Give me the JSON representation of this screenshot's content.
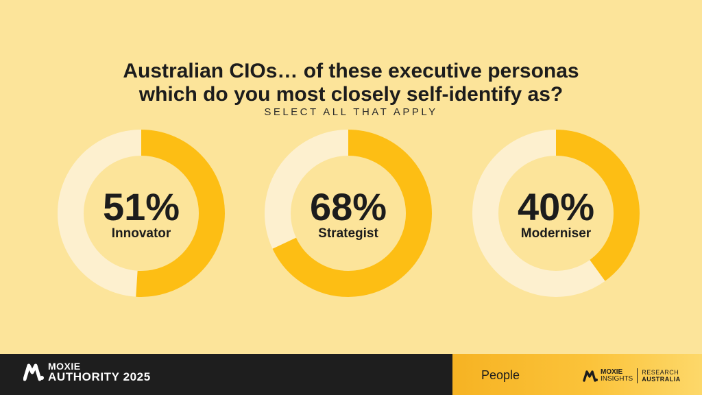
{
  "slide": {
    "title_line1": "Australian CIOs… of these executive personas",
    "title_line2": "which do you most closely self-identify as?",
    "subtitle": "SELECT ALL THAT APPLY"
  },
  "chart_data": {
    "type": "donut",
    "title": "Australian CIOs… of these executive personas which do you most closely self-identify as?",
    "subtitle": "SELECT ALL THAT APPLY",
    "unit": "%",
    "items": [
      {
        "label": "Innovator",
        "value": 51,
        "display": "51%"
      },
      {
        "label": "Strategist",
        "value": 68,
        "display": "68%"
      },
      {
        "label": "Moderniser",
        "value": 40,
        "display": "40%"
      }
    ],
    "colors": {
      "filled": "#FDBE14",
      "track": "#FDF0CF",
      "background": "#FCE49A"
    }
  },
  "footer": {
    "brand_top": "MOXIE",
    "brand_bottom": "AUTHORITY 2025",
    "section": "People",
    "insights_top": "MOXIE",
    "insights_bottom": "INSIGHTS",
    "research_top": "RESEARCH",
    "research_bottom": "AUSTRALIA",
    "colors": {
      "dark": "#1E1E1E",
      "accent": "#F6B323"
    }
  }
}
